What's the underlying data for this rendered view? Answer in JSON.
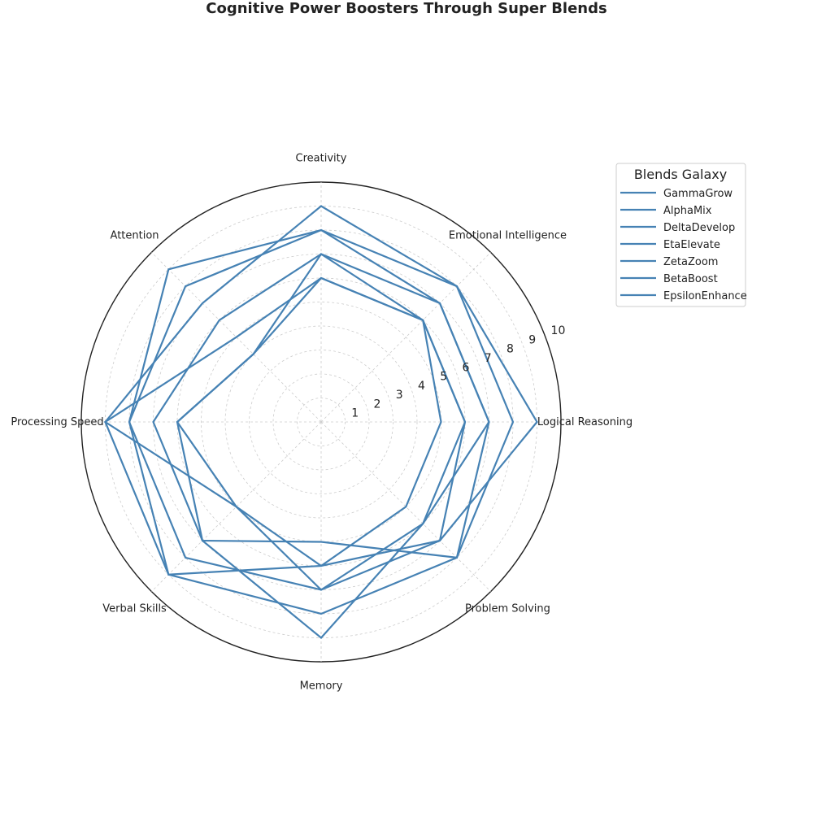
{
  "chart_data": {
    "type": "radar",
    "title": "Cognitive Power Boosters Through Super Blends",
    "axes": [
      "Logical Reasoning",
      "Emotional Intelligence",
      "Creativity",
      "Attention",
      "Processing Speed",
      "Verbal Skills",
      "Memory",
      "Problem Solving"
    ],
    "rticks": [
      1,
      2,
      3,
      4,
      5,
      6,
      7,
      8,
      9,
      10
    ],
    "rlim": [
      0,
      10
    ],
    "grid": true,
    "legend": {
      "title": "Blends Galaxy",
      "position": "upper-right"
    },
    "series_color": "#4682B4",
    "series": [
      {
        "name": "GammaGrow",
        "values": [
          5,
          6,
          6,
          4,
          6,
          5,
          6,
          5
        ]
      },
      {
        "name": "AlphaMix",
        "values": [
          8,
          8,
          8,
          9,
          8,
          9,
          8,
          8
        ]
      },
      {
        "name": "DeltaDevelop",
        "values": [
          7,
          7,
          8,
          8,
          8,
          8,
          7,
          6
        ]
      },
      {
        "name": "EtaElevate",
        "values": [
          9,
          8,
          9,
          7,
          9,
          9,
          6,
          7
        ]
      },
      {
        "name": "ZetaZoom",
        "values": [
          6,
          6,
          7,
          6,
          7,
          7,
          9,
          6
        ]
      },
      {
        "name": "BetaBoost",
        "values": [
          6,
          6,
          6,
          5,
          9,
          5,
          7,
          7
        ]
      },
      {
        "name": "EpsilonEnhance",
        "values": [
          7,
          7,
          7,
          4,
          6,
          7,
          5,
          8
        ]
      }
    ]
  }
}
